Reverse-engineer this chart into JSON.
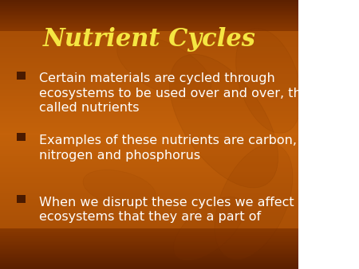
{
  "title": "Nutrient Cycles",
  "title_color": "#F5E642",
  "title_fontsize": 22,
  "bg_color_top": "#8B3A00",
  "bg_color_mid": "#C4620A",
  "bg_color_bottom": "#8B3A00",
  "bar_color": "#5C2000",
  "text_color": "#FFFFFF",
  "bullet_color": "#4A1A00",
  "bullets": [
    "Certain materials are cycled through\necosystems to be used over and over, they are\ncalled nutrients",
    "Examples of these nutrients are carbon,\nnitrogen and phosphorus",
    "When we disrupt these cycles we affect the\necosystems that they are a part of"
  ],
  "bullet_fontsize": 11.5,
  "figsize": [
    4.5,
    3.38
  ],
  "dpi": 100
}
